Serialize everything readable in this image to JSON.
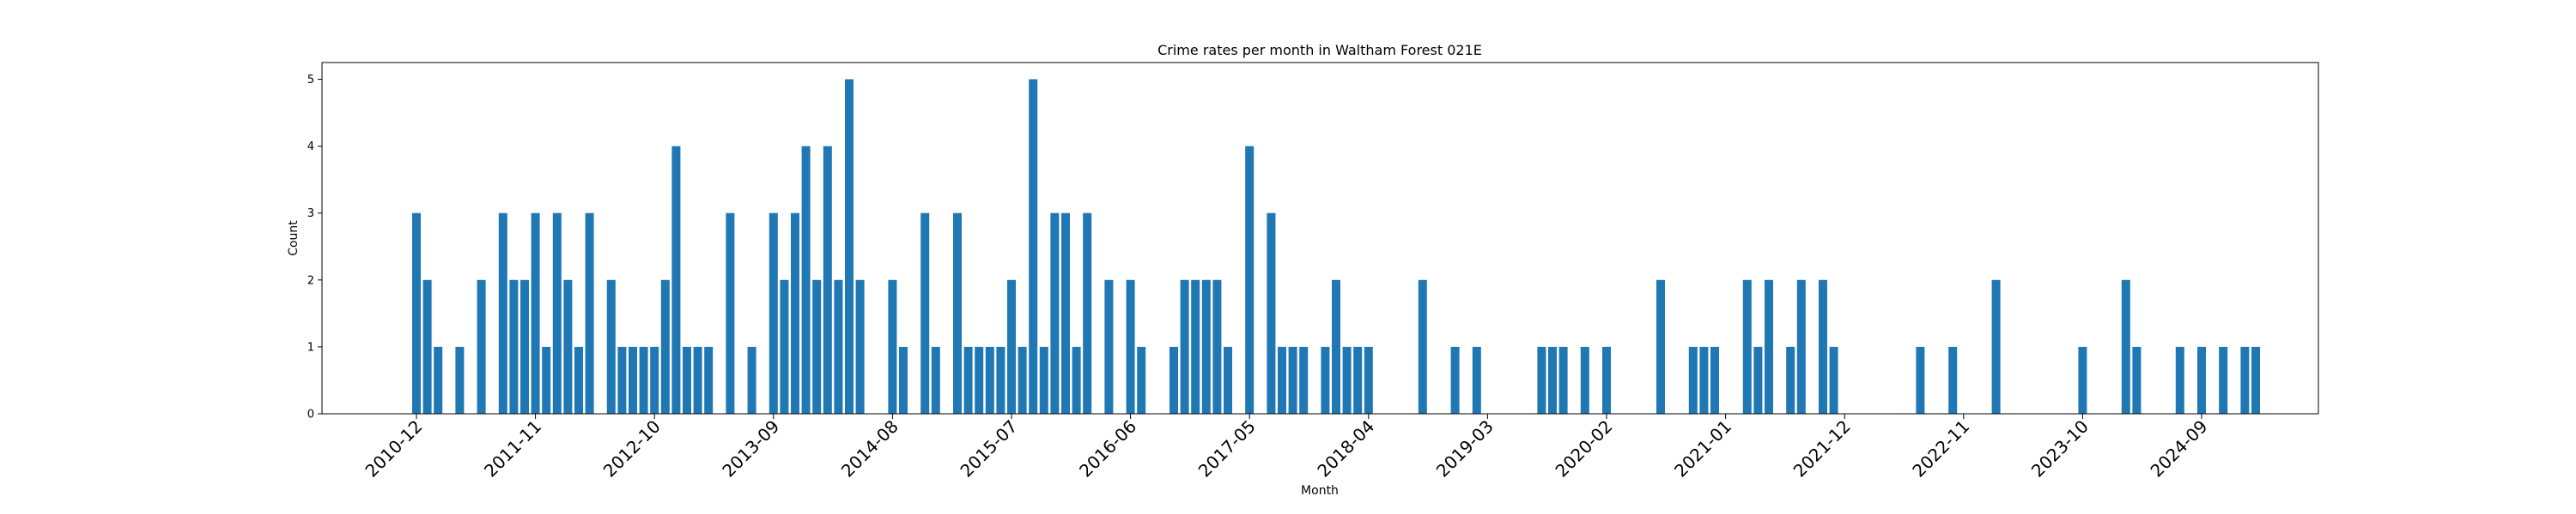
{
  "chart_data": {
    "type": "bar",
    "title": "Crime rates per month in Waltham Forest 021E",
    "xlabel": "Month",
    "ylabel": "Count",
    "ylim": [
      0,
      5.25
    ],
    "yticks": [
      0,
      1,
      2,
      3,
      4,
      5
    ],
    "xticks": [
      "2010-12",
      "2011-11",
      "2012-10",
      "2013-09",
      "2014-08",
      "2015-07",
      "2016-06",
      "2017-05",
      "2018-04",
      "2019-03",
      "2020-02",
      "2021-01",
      "2021-12",
      "2022-11",
      "2023-10",
      "2024-09"
    ],
    "bar_color": "#1f77b4",
    "grid": false,
    "categories": [
      "2010-12",
      "2011-01",
      "2011-02",
      "2011-04",
      "2011-06",
      "2011-08",
      "2011-09",
      "2011-10",
      "2011-11",
      "2011-12",
      "2012-01",
      "2012-02",
      "2012-03",
      "2012-04",
      "2012-06",
      "2012-07",
      "2012-08",
      "2012-09",
      "2012-10",
      "2012-11",
      "2012-12",
      "2013-01",
      "2013-02",
      "2013-03",
      "2013-05",
      "2013-07",
      "2013-09",
      "2013-10",
      "2013-11",
      "2013-12",
      "2014-01",
      "2014-02",
      "2014-03",
      "2014-04",
      "2014-05",
      "2014-08",
      "2014-09",
      "2014-11",
      "2014-12",
      "2015-02",
      "2015-03",
      "2015-04",
      "2015-05",
      "2015-06",
      "2015-07",
      "2015-08",
      "2015-09",
      "2015-10",
      "2015-11",
      "2015-12",
      "2016-01",
      "2016-02",
      "2016-04",
      "2016-06",
      "2016-07",
      "2016-10",
      "2016-11",
      "2016-12",
      "2017-01",
      "2017-02",
      "2017-03",
      "2017-05",
      "2017-07",
      "2017-08",
      "2017-09",
      "2017-10",
      "2017-12",
      "2018-01",
      "2018-02",
      "2018-03",
      "2018-04",
      "2018-09",
      "2018-12",
      "2019-02",
      "2019-08",
      "2019-09",
      "2019-10",
      "2019-12",
      "2020-02",
      "2020-07",
      "2020-10",
      "2020-11",
      "2020-12",
      "2021-03",
      "2021-04",
      "2021-05",
      "2021-07",
      "2021-08",
      "2021-10",
      "2021-11",
      "2022-07",
      "2022-10",
      "2023-02",
      "2023-10",
      "2024-02",
      "2024-03",
      "2024-07",
      "2024-09",
      "2024-11",
      "2025-01",
      "2025-02"
    ],
    "values": [
      3,
      2,
      1,
      1,
      2,
      3,
      2,
      2,
      3,
      1,
      3,
      2,
      1,
      3,
      2,
      1,
      1,
      1,
      1,
      2,
      4,
      1,
      1,
      1,
      3,
      1,
      3,
      2,
      3,
      4,
      2,
      4,
      2,
      5,
      2,
      2,
      1,
      3,
      1,
      3,
      1,
      1,
      1,
      1,
      2,
      1,
      5,
      1,
      3,
      3,
      1,
      3,
      2,
      2,
      1,
      1,
      2,
      2,
      2,
      2,
      1,
      4,
      3,
      1,
      1,
      1,
      1,
      2,
      1,
      1,
      1,
      2,
      1,
      1,
      1,
      1,
      1,
      1,
      1,
      2,
      1,
      1,
      1,
      2,
      1,
      2,
      1,
      2,
      2,
      1,
      1,
      1,
      2,
      1,
      2,
      1,
      1,
      1,
      1,
      1,
      1
    ]
  }
}
